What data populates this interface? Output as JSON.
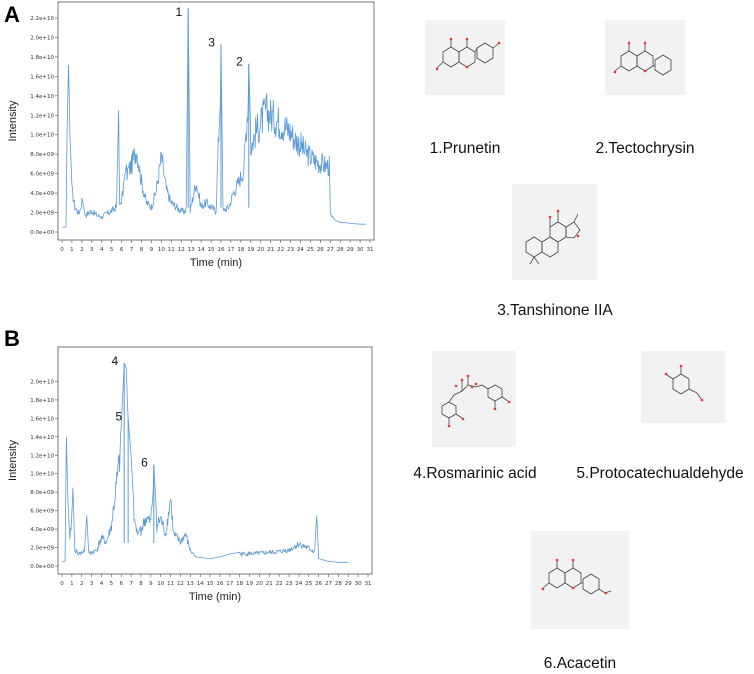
{
  "panels": {
    "A": {
      "label": "A"
    },
    "B": {
      "label": "B"
    }
  },
  "compounds": [
    {
      "number": "1",
      "name": "1.Prunetin"
    },
    {
      "number": "2",
      "name": "2.Tectochrysin"
    },
    {
      "number": "3",
      "name": "3.Tanshinone IIA"
    },
    {
      "number": "4",
      "name": "4.Rosmarinic acid"
    },
    {
      "number": "5",
      "name": "5.Protocatechualdehyde"
    },
    {
      "number": "6",
      "name": "6.Acacetin"
    }
  ],
  "colors": {
    "trace": "#5b9bd5",
    "axis": "#333333",
    "struct_bg": "#f2f2f2",
    "oxygen": "#e53935"
  },
  "chart_data": [
    {
      "type": "line",
      "panel": "A",
      "xlabel": "Time (min)",
      "ylabel": "Intensity",
      "xlim": [
        0,
        31
      ],
      "ylim": [
        0,
        22000000000.0
      ],
      "x_ticks": [
        "0",
        "1",
        "2",
        "3",
        "4",
        "5",
        "6",
        "7",
        "8",
        "9",
        "10",
        "11",
        "12",
        "13",
        "14",
        "15",
        "16",
        "17",
        "18",
        "19",
        "20",
        "21",
        "22",
        "23",
        "24",
        "25",
        "26",
        "27",
        "28",
        "29",
        "30",
        "31"
      ],
      "y_ticks": [
        "0.0e+00",
        "2.0e+09",
        "4.0e+09",
        "6.0e+09",
        "8.0e+09",
        "1.0e+10",
        "1.2e+10",
        "1.4e+10",
        "1.6e+10",
        "1.8e+10",
        "2.0e+10",
        "2.2e+10"
      ],
      "peaks": [
        {
          "label": "1",
          "x": 12.7,
          "y": 23000000000.0
        },
        {
          "label": "3",
          "x": 16.0,
          "y": 19300000000.0
        },
        {
          "label": "2",
          "x": 18.8,
          "y": 17300000000.0
        }
      ],
      "envelope": [
        [
          0.0,
          500000000.0
        ],
        [
          0.4,
          500000000.0
        ],
        [
          0.5,
          10000000000.0
        ],
        [
          0.65,
          17200000000.0
        ],
        [
          0.8,
          10000000000.0
        ],
        [
          1.0,
          5000000000.0
        ],
        [
          1.3,
          3000000000.0
        ],
        [
          1.7,
          2200000000.0
        ],
        [
          2.0,
          3500000000.0
        ],
        [
          2.3,
          2000000000.0
        ],
        [
          3.0,
          2500000000.0
        ],
        [
          3.5,
          2000000000.0
        ],
        [
          4.0,
          1800000000.0
        ],
        [
          4.5,
          2200000000.0
        ],
        [
          5.0,
          2500000000.0
        ],
        [
          5.5,
          3000000000.0
        ],
        [
          5.7,
          12500000000.0
        ],
        [
          5.8,
          3000000000.0
        ],
        [
          6.2,
          5000000000.0
        ],
        [
          6.5,
          7000000000.0
        ],
        [
          7.0,
          8000000000.0
        ],
        [
          7.5,
          10000000000.0
        ],
        [
          8.0,
          6000000000.0
        ],
        [
          8.5,
          3500000000.0
        ],
        [
          9.0,
          3000000000.0
        ],
        [
          9.5,
          5000000000.0
        ],
        [
          10.0,
          9000000000.0
        ],
        [
          10.5,
          5000000000.0
        ],
        [
          11.0,
          3500000000.0
        ],
        [
          11.5,
          3000000000.0
        ],
        [
          12.0,
          2500000000.0
        ],
        [
          12.5,
          2500000000.0
        ],
        [
          12.7,
          23000000000.0
        ],
        [
          12.9,
          2500000000.0
        ],
        [
          13.5,
          6000000000.0
        ],
        [
          14.0,
          3000000000.0
        ],
        [
          14.5,
          3500000000.0
        ],
        [
          15.0,
          3000000000.0
        ],
        [
          15.5,
          2500000000.0
        ],
        [
          16.0,
          19300000000.0
        ],
        [
          16.2,
          2500000000.0
        ],
        [
          16.8,
          3000000000.0
        ],
        [
          17.2,
          4500000000.0
        ],
        [
          17.8,
          6000000000.0
        ],
        [
          18.3,
          7500000000.0
        ],
        [
          18.8,
          17300000000.0
        ],
        [
          19.0,
          10000000000.0
        ],
        [
          19.5,
          12000000000.0
        ],
        [
          20.0,
          13000000000.0
        ],
        [
          20.5,
          14500000000.0
        ],
        [
          21.0,
          14000000000.0
        ],
        [
          21.5,
          13500000000.0
        ],
        [
          22.0,
          13000000000.0
        ],
        [
          22.5,
          12500000000.0
        ],
        [
          23.0,
          12000000000.0
        ],
        [
          23.5,
          11000000000.0
        ],
        [
          24.0,
          10500000000.0
        ],
        [
          24.5,
          9500000000.0
        ],
        [
          25.0,
          9000000000.0
        ],
        [
          25.5,
          8500000000.0
        ],
        [
          26.0,
          8200000000.0
        ],
        [
          26.5,
          8000000000.0
        ],
        [
          26.9,
          7800000000.0
        ],
        [
          27.0,
          2000000000.0
        ],
        [
          27.5,
          1200000000.0
        ],
        [
          28.0,
          1000000000.0
        ],
        [
          29.0,
          900000000.0
        ],
        [
          30.0,
          800000000.0
        ],
        [
          30.6,
          800000000.0
        ]
      ]
    },
    {
      "type": "line",
      "panel": "B",
      "xlabel": "Time (min)",
      "ylabel": "Intensity",
      "xlim": [
        0,
        31
      ],
      "ylim": [
        0,
        22000000000.0
      ],
      "x_ticks": [
        "0",
        "1",
        "2",
        "3",
        "4",
        "5",
        "6",
        "7",
        "8",
        "9",
        "10",
        "11",
        "12",
        "13",
        "14",
        "15",
        "16",
        "17",
        "18",
        "19",
        "20",
        "21",
        "22",
        "23",
        "24",
        "25",
        "26",
        "27",
        "28",
        "29",
        "30",
        "31"
      ],
      "y_ticks": [
        "0.0e+00",
        "2.0e+09",
        "4.0e+09",
        "6.0e+09",
        "8.0e+09",
        "1.0e+10",
        "1.2e+10",
        "1.4e+10",
        "1.6e+10",
        "1.8e+10",
        "2.0e+10"
      ],
      "peaks": [
        {
          "label": "4",
          "x": 6.3,
          "y": 22000000000.0
        },
        {
          "label": "5",
          "x": 6.7,
          "y": 16000000000.0
        },
        {
          "label": "6",
          "x": 9.3,
          "y": 11000000000.0
        }
      ],
      "envelope": [
        [
          0.0,
          500000000.0
        ],
        [
          0.3,
          500000000.0
        ],
        [
          0.45,
          14000000000.0
        ],
        [
          0.6,
          7000000000.0
        ],
        [
          0.8,
          3000000000.0
        ],
        [
          1.1,
          8500000000.0
        ],
        [
          1.3,
          2000000000.0
        ],
        [
          1.8,
          1500000000.0
        ],
        [
          2.3,
          2000000000.0
        ],
        [
          2.5,
          5500000000.0
        ],
        [
          2.7,
          1500000000.0
        ],
        [
          3.5,
          2000000000.0
        ],
        [
          4.0,
          3500000000.0
        ],
        [
          4.5,
          3000000000.0
        ],
        [
          5.0,
          5000000000.0
        ],
        [
          5.5,
          10000000000.0
        ],
        [
          6.0,
          15000000000.0
        ],
        [
          6.3,
          22000000000.0
        ],
        [
          6.5,
          21500000000.0
        ],
        [
          6.7,
          16000000000.0
        ],
        [
          7.0,
          12000000000.0
        ],
        [
          7.3,
          6000000000.0
        ],
        [
          7.7,
          3500000000.0
        ],
        [
          8.0,
          4500000000.0
        ],
        [
          8.5,
          6000000000.0
        ],
        [
          9.0,
          5500000000.0
        ],
        [
          9.3,
          11000000000.0
        ],
        [
          9.6,
          5000000000.0
        ],
        [
          10.0,
          6000000000.0
        ],
        [
          10.5,
          4000000000.0
        ],
        [
          11.0,
          8500000000.0
        ],
        [
          11.3,
          4000000000.0
        ],
        [
          12.0,
          3000000000.0
        ],
        [
          12.5,
          4000000000.0
        ],
        [
          13.0,
          2000000000.0
        ],
        [
          13.5,
          1000000000.0
        ],
        [
          15.0,
          800000000.0
        ],
        [
          16.0,
          1000000000.0
        ],
        [
          17.0,
          1300000000.0
        ],
        [
          18.0,
          1500000000.0
        ],
        [
          20.0,
          1600000000.0
        ],
        [
          22.0,
          1800000000.0
        ],
        [
          23.0,
          2000000000.0
        ],
        [
          24.0,
          2800000000.0
        ],
        [
          25.0,
          2200000000.0
        ],
        [
          25.6,
          1800000000.0
        ],
        [
          25.8,
          5500000000.0
        ],
        [
          26.0,
          800000000.0
        ],
        [
          27.0,
          500000000.0
        ],
        [
          28.0,
          400000000.0
        ],
        [
          29.0,
          400000000.0
        ]
      ]
    }
  ]
}
